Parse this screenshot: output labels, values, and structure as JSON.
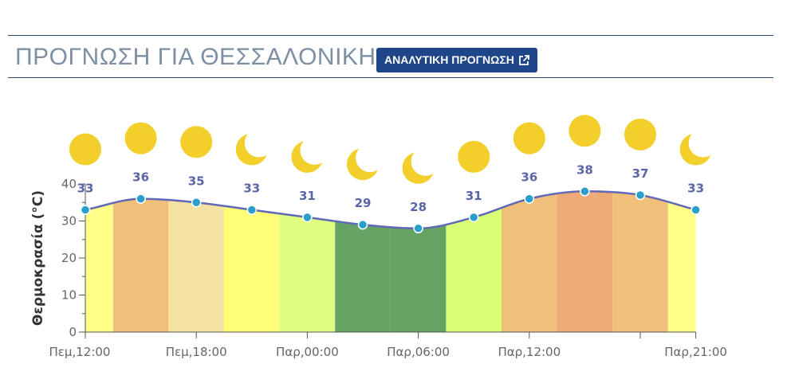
{
  "header": {
    "title": "ΠΡΟΓΝΩΣΗ ΓΙΑ ΘΕΣΣΑΛΟΝΙΚΗ",
    "button_label": "ΑΝΑΛΥΤΙΚΗ ΠΡΟΓΝΩΣΗ",
    "button_icon": "external-link-icon"
  },
  "chart_data": {
    "type": "line",
    "ylabel": "Θερμοκρασία (°C)",
    "ylim": [
      0,
      40
    ],
    "yticks": [
      0,
      10,
      20,
      30,
      40
    ],
    "x_labels": [
      "Πεμ,12:00",
      "Πεμ,18:00",
      "Παρ,00:00",
      "Παρ,06:00",
      "Παρ,12:00",
      "Παρ,21:00"
    ],
    "x_label_positions": [
      0,
      2,
      4,
      6,
      8,
      11
    ],
    "values": [
      33,
      36,
      35,
      33,
      31,
      29,
      28,
      31,
      36,
      38,
      37,
      33
    ],
    "icons": [
      "sun-icon",
      "sun-icon",
      "sun-icon",
      "moon-icon",
      "moon-icon",
      "moon-icon",
      "moon-icon",
      "sun-icon",
      "sun-icon",
      "sun-icon",
      "sun-icon",
      "moon-icon"
    ],
    "band_colors": [
      "#ffff88",
      "#f0c07a",
      "#f5e3a3",
      "#ffff77",
      "#e0ff80",
      "#66a363",
      "#66a363",
      "#d9ff77",
      "#f0c07a",
      "#eeaa77",
      "#f0c07a",
      "#ffff88"
    ],
    "line_color": "#6068b8",
    "marker_color": "#2a9fcc",
    "label_color": "#5a64a8"
  }
}
